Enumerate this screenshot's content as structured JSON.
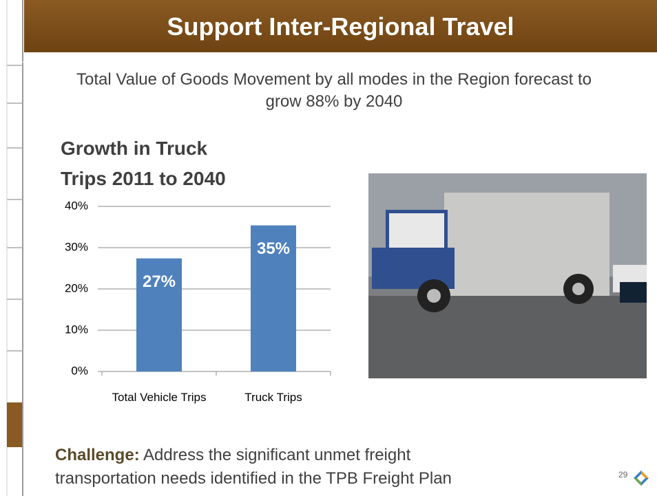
{
  "header": {
    "title": "Support Inter-Regional Travel"
  },
  "subtitle": "Total Value of Goods Movement by all modes in the Region forecast to grow 88% by 2040",
  "chart_data": {
    "type": "bar",
    "title": "Growth in Truck Trips 2011 to 2040",
    "categories": [
      "Total Vehicle Trips",
      "Truck Trips"
    ],
    "values": [
      27.4,
      35.4
    ],
    "value_labels": [
      "27%",
      "35%"
    ],
    "color": "#4f81bd",
    "ylim": [
      0,
      40
    ],
    "yticks": [
      {
        "value": 0,
        "label": "0%"
      },
      {
        "value": 10,
        "label": "10%"
      },
      {
        "value": 20,
        "label": "20%"
      },
      {
        "value": 30,
        "label": "30%"
      },
      {
        "value": 40,
        "label": "40%"
      }
    ],
    "grid": true
  },
  "challenge": {
    "label": "Challenge:",
    "text": "Address the significant unmet freight transportation needs identified in the TPB Freight Plan"
  },
  "page_number": "29"
}
